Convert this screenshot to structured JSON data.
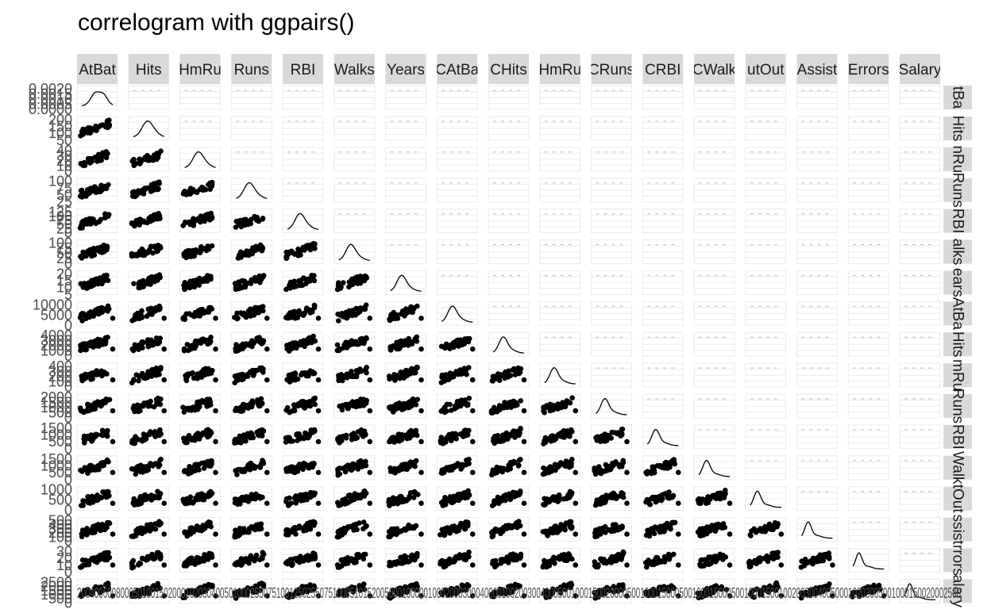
{
  "chart_data": {
    "type": "scatter",
    "title": "correlogram with ggpairs()",
    "variables": [
      "AtBat",
      "Hits",
      "HmRun",
      "Runs",
      "RBI",
      "Walks",
      "Years",
      "CAtBat",
      "CHits",
      "CHmRun",
      "CRuns",
      "CRBI",
      "CWalks",
      "PutOuts",
      "Assists",
      "Errors",
      "Salary"
    ],
    "column_strip_labels": [
      "AtBat",
      "Hits",
      "HmRu",
      "Runs",
      "RBI",
      "Walks",
      "Years",
      "CAtBa",
      "CHits",
      "HmRu",
      "CRuns",
      "CRBI",
      "CWalk",
      "utOut",
      "Assist",
      "Errors",
      "Salary"
    ],
    "row_strip_labels": [
      "tBa",
      "Hits",
      "nRu",
      "Runs",
      "RBI",
      "alks",
      "ears",
      "AtBa",
      "Hits",
      "mRu",
      "Runs",
      "RBI",
      "Walk",
      "tOut",
      "ssist",
      "rrors",
      "alary"
    ],
    "y_tick_labels": [
      [
        "0.0020",
        "0.0015",
        "0.0010",
        "0.0005",
        "0.0000"
      ],
      [
        "200",
        "150",
        "100",
        "50"
      ],
      [
        "40",
        "30",
        "20",
        "10",
        "0"
      ],
      [
        "100",
        "75",
        "50",
        "25"
      ],
      [
        "125",
        "100",
        "75",
        "50",
        "25",
        "0"
      ],
      [
        "100",
        "75",
        "50",
        "25",
        "0"
      ],
      [
        "20",
        "15",
        "10",
        "5"
      ],
      [
        "10000",
        "5000",
        "0"
      ],
      [
        "4000",
        "3000",
        "2000",
        "1000",
        "0"
      ],
      [
        "400",
        "300",
        "200",
        "100",
        "0"
      ],
      [
        "2000",
        "1500",
        "1000",
        "500",
        "0"
      ],
      [
        "1500",
        "1000",
        "500",
        "0"
      ],
      [
        "1500",
        "1000",
        "500",
        "0"
      ],
      [
        "1000",
        "500",
        "0"
      ],
      [
        "500",
        "400",
        "300",
        "200",
        "100",
        "0"
      ],
      [
        "30",
        "20",
        "10",
        "0"
      ],
      [
        "2500",
        "2000",
        "1500",
        "1000",
        "500",
        "0"
      ]
    ],
    "x_tick_labels": "200400600800050100150200010203040050100025507510012502550751000510152005000100000100020003000400001002003004000500100015002000050010001500050010001500050010001500100200300400500010203005001000150020002500",
    "diagonal": "density",
    "upper": "blank",
    "lower": "scatter",
    "grid": true
  }
}
